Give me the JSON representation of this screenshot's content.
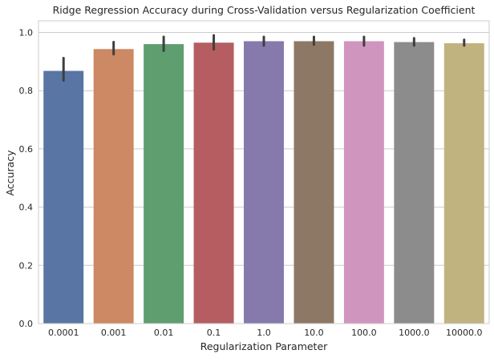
{
  "chart_data": {
    "type": "bar",
    "title": "Ridge Regression Accuracy during Cross-Validation versus Regularization Coefficient",
    "xlabel": "Regularization Parameter",
    "ylabel": "Accuracy",
    "categories": [
      "0.0001",
      "0.001",
      "0.01",
      "0.1",
      "1.0",
      "10.0",
      "100.0",
      "1000.0",
      "10000.0"
    ],
    "values": [
      0.868,
      0.943,
      0.96,
      0.965,
      0.97,
      0.97,
      0.97,
      0.967,
      0.963
    ],
    "error_low": [
      0.835,
      0.925,
      0.937,
      0.942,
      0.955,
      0.958,
      0.955,
      0.955,
      0.955
    ],
    "error_high": [
      0.912,
      0.967,
      0.985,
      0.99,
      0.985,
      0.985,
      0.985,
      0.98,
      0.975
    ],
    "colors": [
      "#5975a4",
      "#cc8963",
      "#5f9e6e",
      "#b55d60",
      "#857aab",
      "#8d7866",
      "#d095bf",
      "#8c8c8c",
      "#c1b37f"
    ],
    "ylim": [
      0,
      1.04
    ],
    "yticks": [
      "0.0",
      "0.2",
      "0.4",
      "0.6",
      "0.8",
      "1.0"
    ],
    "grid": "horizontal",
    "error_color": "#3f3f3f"
  }
}
